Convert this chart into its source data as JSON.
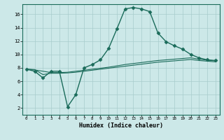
{
  "xlabel": "Humidex (Indice chaleur)",
  "ylabel": "",
  "background_color": "#cce8e8",
  "line_color": "#1a6b5a",
  "grid_color": "#a8cccc",
  "xlim": [
    -0.5,
    23.5
  ],
  "ylim": [
    1.0,
    17.5
  ],
  "xtick_vals": [
    0,
    1,
    2,
    3,
    4,
    5,
    6,
    7,
    8,
    9,
    10,
    11,
    12,
    13,
    14,
    15,
    16,
    17,
    18,
    19,
    20,
    21,
    22,
    23
  ],
  "ytick_vals": [
    2,
    4,
    6,
    8,
    10,
    12,
    14,
    16
  ],
  "series": [
    {
      "x": [
        0,
        1,
        2,
        3,
        4,
        5,
        6,
        7,
        8,
        9,
        10,
        11,
        12,
        13,
        14,
        15,
        16,
        17,
        18,
        19,
        20,
        21,
        22,
        23
      ],
      "y": [
        7.8,
        7.5,
        6.5,
        7.5,
        7.5,
        2.2,
        4.0,
        8.0,
        8.5,
        9.2,
        10.9,
        13.8,
        16.8,
        17.0,
        16.8,
        16.4,
        13.2,
        11.9,
        11.3,
        10.8,
        10.0,
        9.5,
        9.2,
        9.1
      ],
      "marker": "D",
      "markersize": 2.5,
      "linewidth": 1.0
    },
    {
      "x": [
        0,
        1,
        2,
        3,
        4,
        5,
        6,
        7,
        8,
        9,
        10,
        11,
        12,
        13,
        14,
        15,
        16,
        17,
        18,
        19,
        20,
        21,
        22,
        23
      ],
      "y": [
        7.8,
        7.75,
        7.0,
        7.2,
        7.2,
        7.25,
        7.35,
        7.5,
        7.65,
        7.8,
        7.95,
        8.1,
        8.25,
        8.4,
        8.55,
        8.7,
        8.85,
        8.95,
        9.05,
        9.15,
        9.25,
        9.1,
        9.0,
        8.9
      ],
      "marker": null,
      "markersize": 0,
      "linewidth": 0.8
    },
    {
      "x": [
        0,
        1,
        2,
        3,
        4,
        5,
        6,
        7,
        8,
        9,
        10,
        11,
        12,
        13,
        14,
        15,
        16,
        17,
        18,
        19,
        20,
        21,
        22,
        23
      ],
      "y": [
        7.8,
        7.7,
        7.5,
        7.3,
        7.3,
        7.35,
        7.5,
        7.65,
        7.8,
        7.95,
        8.1,
        8.3,
        8.5,
        8.65,
        8.8,
        8.95,
        9.1,
        9.2,
        9.3,
        9.4,
        9.5,
        9.3,
        9.15,
        9.05
      ],
      "marker": null,
      "markersize": 0,
      "linewidth": 0.8
    }
  ]
}
